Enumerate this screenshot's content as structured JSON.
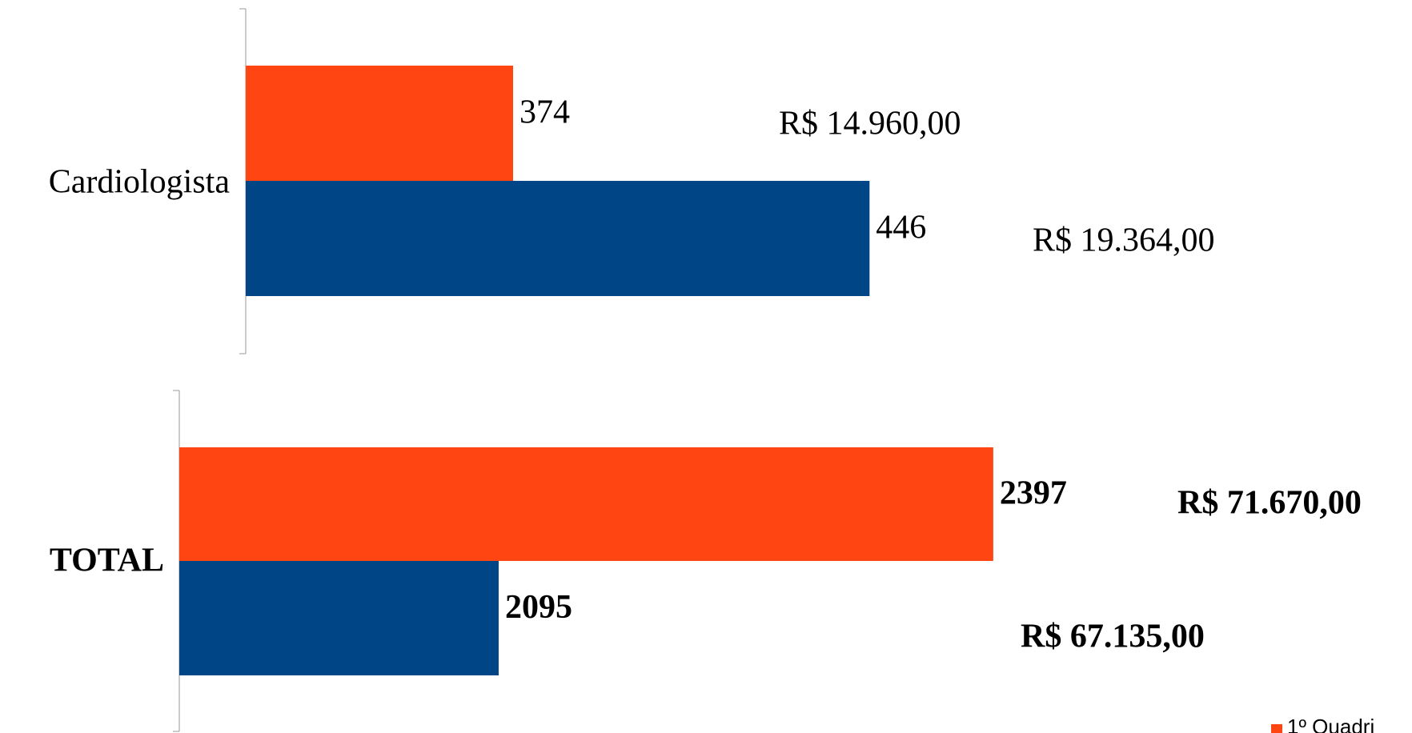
{
  "chart_data": [
    {
      "type": "bar",
      "orientation": "horizontal",
      "categories": [
        "Cardiologista"
      ],
      "xlim": [
        320,
        520
      ],
      "bold": false,
      "series": [
        {
          "name": "1º Quadri",
          "color": "#ff4511",
          "values": [
            374
          ],
          "revenue_labels": [
            "R$ 14.960,00"
          ]
        },
        {
          "color": "#004586",
          "values": [
            446
          ],
          "revenue_labels": [
            "R$ 19.364,00"
          ]
        }
      ]
    },
    {
      "type": "bar",
      "orientation": "horizontal",
      "categories": [
        "TOTAL"
      ],
      "xlim": [
        1900,
        2400
      ],
      "bold": true,
      "series": [
        {
          "color": "#ff4511",
          "values": [
            2397
          ],
          "revenue_labels": [
            "R$ 71.670,00"
          ]
        },
        {
          "color": "#004586",
          "values": [
            2095
          ],
          "revenue_labels": [
            "R$ 67.135,00"
          ]
        }
      ]
    }
  ]
}
